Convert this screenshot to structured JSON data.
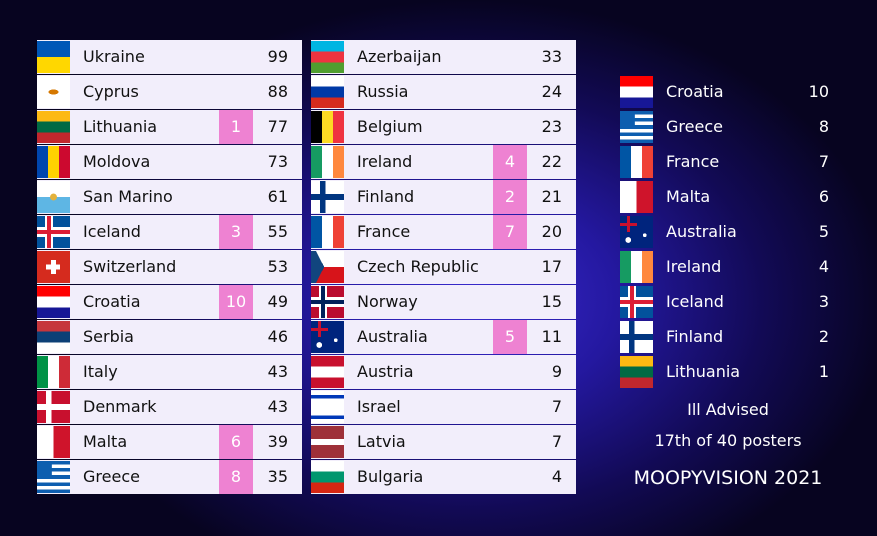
{
  "left": [
    {
      "country": "Ukraine",
      "score": 99
    },
    {
      "country": "Cyprus",
      "score": 88
    },
    {
      "country": "Lithuania",
      "award": 1,
      "score": 77
    },
    {
      "country": "Moldova",
      "score": 73
    },
    {
      "country": "San Marino",
      "score": 61
    },
    {
      "country": "Iceland",
      "award": 3,
      "score": 55
    },
    {
      "country": "Switzerland",
      "score": 53
    },
    {
      "country": "Croatia",
      "award": 10,
      "score": 49
    },
    {
      "country": "Serbia",
      "score": 46
    },
    {
      "country": "Italy",
      "score": 43
    },
    {
      "country": "Denmark",
      "score": 43
    },
    {
      "country": "Malta",
      "award": 6,
      "score": 39
    },
    {
      "country": "Greece",
      "award": 8,
      "score": 35
    }
  ],
  "middle": [
    {
      "country": "Azerbaijan",
      "score": 33
    },
    {
      "country": "Russia",
      "score": 24
    },
    {
      "country": "Belgium",
      "score": 23
    },
    {
      "country": "Ireland",
      "award": 4,
      "score": 22
    },
    {
      "country": "Finland",
      "award": 2,
      "score": 21
    },
    {
      "country": "France",
      "award": 7,
      "score": 20
    },
    {
      "country": "Czech Republic",
      "score": 17
    },
    {
      "country": "Norway",
      "score": 15
    },
    {
      "country": "Australia",
      "award": 5,
      "score": 11
    },
    {
      "country": "Austria",
      "score": 9
    },
    {
      "country": "Israel",
      "score": 7
    },
    {
      "country": "Latvia",
      "score": 7
    },
    {
      "country": "Bulgaria",
      "score": 4
    }
  ],
  "ranking": [
    {
      "country": "Croatia",
      "points": 10
    },
    {
      "country": "Greece",
      "points": 8
    },
    {
      "country": "France",
      "points": 7
    },
    {
      "country": "Malta",
      "points": 6
    },
    {
      "country": "Australia",
      "points": 5
    },
    {
      "country": "Ireland",
      "points": 4
    },
    {
      "country": "Iceland",
      "points": 3
    },
    {
      "country": "Finland",
      "points": 2
    },
    {
      "country": "Lithuania",
      "points": 1
    }
  ],
  "footer": {
    "artist": "Ill Advised",
    "placing": "17th of 40 posters",
    "brand": "MOOPYVISION 2021"
  }
}
